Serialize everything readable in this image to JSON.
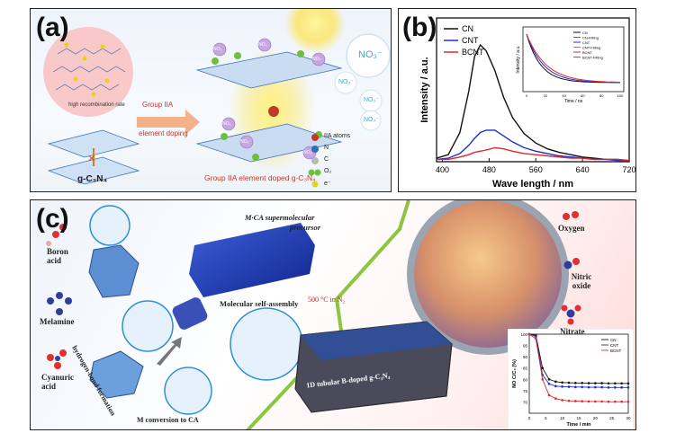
{
  "panel_a": {
    "label": "(a)",
    "circle_caption": "high recombination rate",
    "g_c3n4_label": "g-C₃N₄",
    "arrow_text_line1": "Group IIA",
    "arrow_text_line2": "element doping",
    "no3_big": "NO₃⁻",
    "no3_small": "NO₃⁻",
    "mol_labels": [
      "NO₃",
      "NO₃",
      "NO₃",
      "NO₃",
      "NO₃",
      "NO₃"
    ],
    "doped_caption": "Group IIA element doped g-C₃N₄",
    "legend": [
      {
        "label": "IIA atoms",
        "color": "#c0392b"
      },
      {
        "label": "N",
        "color": "#2f6fb5"
      },
      {
        "label": "C",
        "color": "#b9b9b9"
      },
      {
        "label": "O₂",
        "color": "#6fbf3f"
      },
      {
        "label": "e⁻",
        "color": "#e8d21a"
      }
    ]
  },
  "panel_b": {
    "label": "(b)",
    "inset_legend": [
      "CN",
      "CN-Fitting",
      "CNT",
      "CNT-Fitting",
      "BCNT",
      "BCNT-Fitting"
    ],
    "inset_xlabel": "Time / ns",
    "inset_ylabel": "Intensity / a.u.",
    "inset_xticks": [
      "0",
      "20",
      "40",
      "60",
      "80",
      "100"
    ]
  },
  "panel_c": {
    "label": "(c)",
    "reagents": [
      "Boron acid",
      "Melamine",
      "Cyanuric acid"
    ],
    "hbond": "hydrogen-bond formation",
    "m_conversion": "M conversion to CA",
    "precursor_line1": "M·CA supermolecular",
    "precursor_line2": "precursor",
    "self_assembly": "Molecular self-assembly",
    "temp": "500 °C in N₂",
    "tubular": "1D tubular B-doped g-C₃N₄",
    "species": [
      "Oxygen",
      "Nitric oxide",
      "Nitrate"
    ]
  },
  "colors": {
    "cn": "#111111",
    "cnt": "#1f2bd6",
    "bcnt": "#e0262b"
  },
  "chart_data": [
    {
      "type": "line",
      "title": "",
      "xlabel": "Wave length / nm",
      "ylabel": "Intensity / a.u.",
      "xlim": [
        390,
        720
      ],
      "xticks": [
        400,
        480,
        560,
        640,
        720
      ],
      "legend_position": "top-left",
      "grid": false,
      "x": [
        390,
        410,
        430,
        445,
        455,
        465,
        475,
        490,
        505,
        520,
        540,
        560,
        580,
        600,
        620,
        640,
        660,
        680,
        700,
        720
      ],
      "series": [
        {
          "name": "CN",
          "values": [
            0.03,
            0.06,
            0.25,
            0.6,
            0.9,
            1.0,
            0.95,
            0.78,
            0.55,
            0.38,
            0.24,
            0.16,
            0.11,
            0.08,
            0.06,
            0.04,
            0.03,
            0.02,
            0.02,
            0.01
          ]
        },
        {
          "name": "CNT",
          "values": [
            0.02,
            0.03,
            0.07,
            0.14,
            0.2,
            0.25,
            0.27,
            0.27,
            0.22,
            0.17,
            0.12,
            0.09,
            0.07,
            0.05,
            0.04,
            0.03,
            0.02,
            0.02,
            0.01,
            0.01
          ]
        },
        {
          "name": "BCNT",
          "values": [
            0.02,
            0.02,
            0.04,
            0.06,
            0.08,
            0.09,
            0.1,
            0.12,
            0.11,
            0.09,
            0.07,
            0.06,
            0.05,
            0.04,
            0.03,
            0.03,
            0.02,
            0.02,
            0.02,
            0.01
          ]
        }
      ]
    },
    {
      "type": "line",
      "title": "",
      "xlabel": "Time / min",
      "ylabel": "NO C/C₀ (%)",
      "xlim": [
        0,
        30
      ],
      "ylim": [
        65,
        100
      ],
      "xticks": [
        0,
        5,
        10,
        15,
        20,
        25,
        30
      ],
      "yticks": [
        70,
        75,
        80,
        85,
        90,
        95,
        100
      ],
      "legend_position": "top-right",
      "x": [
        0,
        2,
        4,
        6,
        8,
        10,
        12,
        14,
        16,
        18,
        20,
        22,
        24,
        26,
        28,
        30
      ],
      "series": [
        {
          "name": "CN",
          "values": [
            100,
            99.5,
            85,
            80,
            79,
            78.6,
            78.5,
            78.4,
            78.4,
            78.3,
            78.3,
            78.3,
            78.2,
            78.2,
            78.2,
            78.2
          ]
        },
        {
          "name": "CNT",
          "values": [
            100,
            99,
            82,
            78,
            77,
            76.8,
            76.7,
            76.6,
            76.6,
            76.5,
            76.5,
            76.5,
            76.4,
            76.4,
            76.4,
            76.4
          ]
        },
        {
          "name": "BCNT",
          "values": [
            100,
            98,
            80,
            73,
            71.5,
            70.8,
            70.5,
            70.4,
            70.3,
            70.2,
            70.2,
            70.2,
            70.1,
            70.1,
            70.1,
            70.1
          ]
        }
      ]
    }
  ]
}
